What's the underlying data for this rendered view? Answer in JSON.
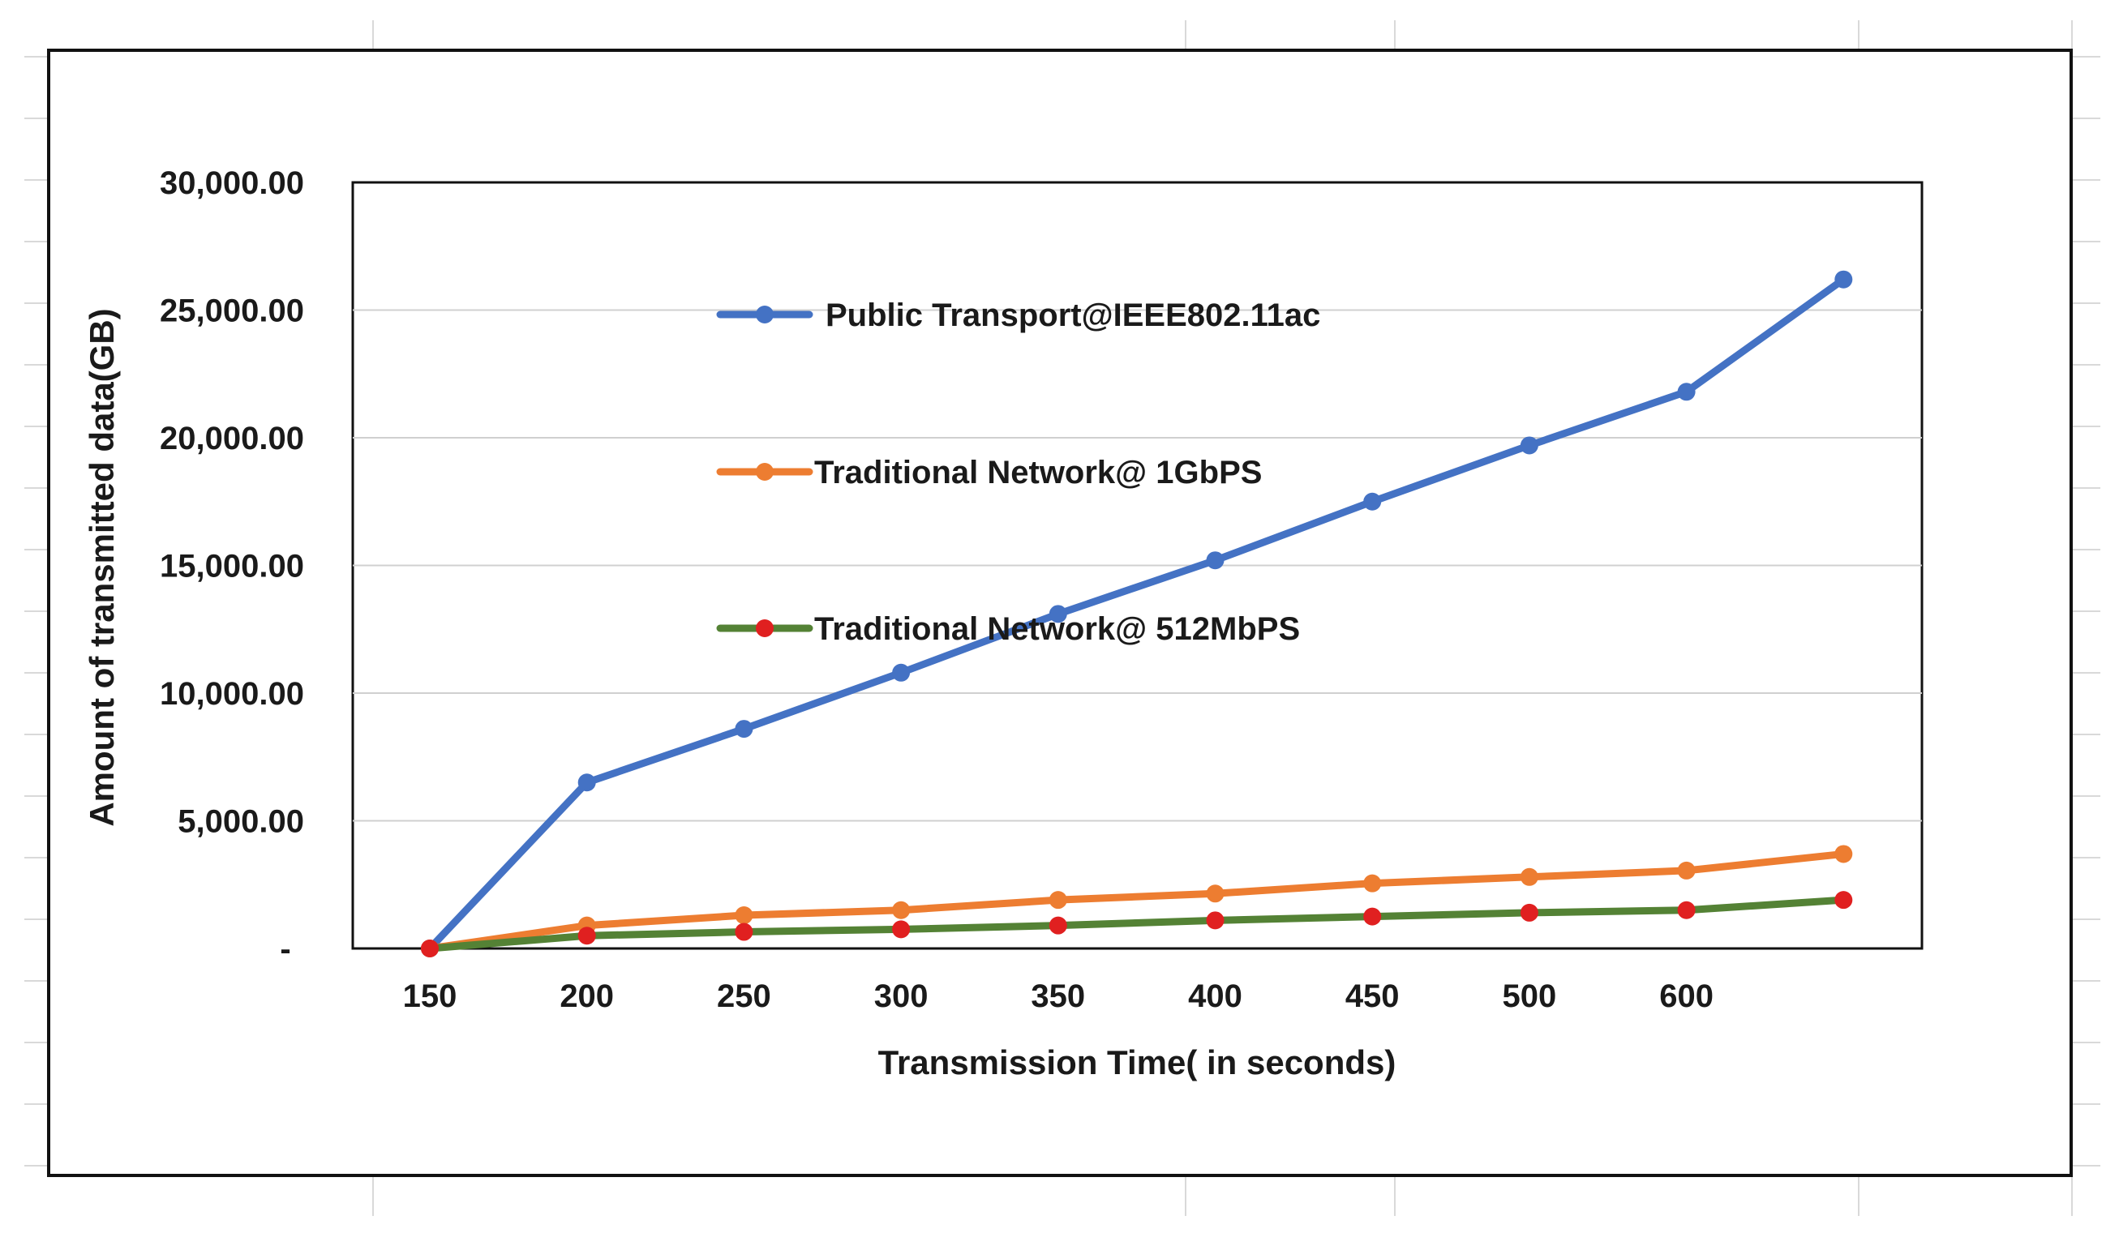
{
  "chart_data": {
    "type": "line",
    "title": "",
    "xlabel": "Transmission Time( in seconds)",
    "ylabel": "Amount of transmitted data(GB)",
    "categories": [
      "150",
      "200",
      "250",
      "300",
      "350",
      "400",
      "450",
      "500",
      "600",
      ""
    ],
    "ylim": [
      0,
      30000
    ],
    "yticks": [
      0,
      5000,
      10000,
      15000,
      20000,
      25000,
      30000
    ],
    "ytick_labels": [
      "-",
      "5,000.00",
      "10,000.00",
      "15,000.00",
      "20,000.00",
      "25,000.00",
      "30,000.00"
    ],
    "grid": true,
    "legend_position": "center-left, inside plot",
    "series": [
      {
        "name": "Public Transport@IEEE802.11ac",
        "color": "#4472C4",
        "marker_color": "#4472C4",
        "values": [
          0,
          6500,
          8600,
          10800,
          13100,
          15200,
          17500,
          19700,
          21800,
          26200
        ]
      },
      {
        "name": "Traditional Network@ 1GbPS",
        "color": "#ED7D31",
        "marker_color": "#ED7D31",
        "values": [
          0,
          900,
          1300,
          1500,
          1900,
          2150,
          2550,
          2800,
          3050,
          3700
        ]
      },
      {
        "name": "Traditional Network@ 512MbPS",
        "color": "#548235",
        "marker_color": "#E02020",
        "values": [
          0,
          500,
          650,
          750,
          900,
          1100,
          1250,
          1400,
          1500,
          1900
        ]
      }
    ]
  }
}
